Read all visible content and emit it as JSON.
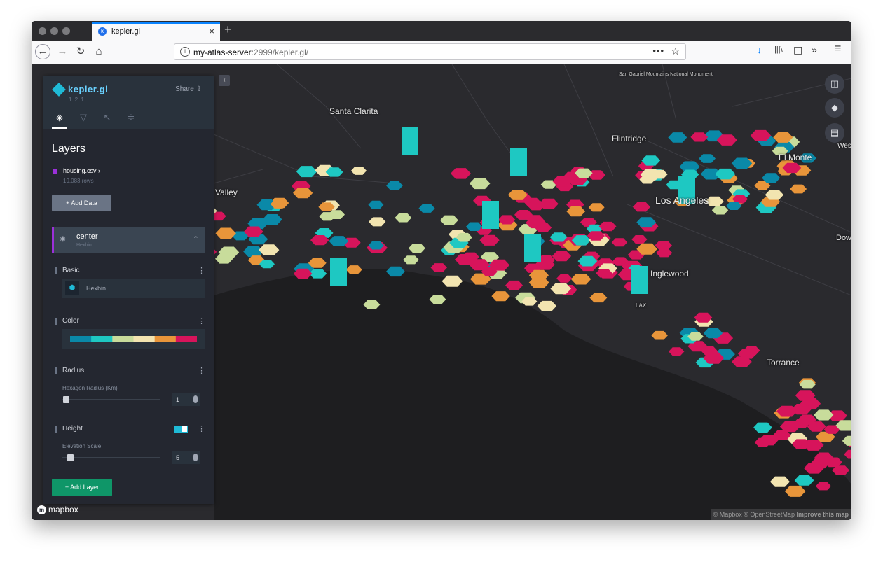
{
  "browser": {
    "tab_title": "kepler.gl",
    "tab_close": "×",
    "new_tab": "+",
    "url_host": "my-atlas-server",
    "url_path": ":2999/kepler.gl/",
    "back_icon": "←",
    "forward_icon": "→",
    "reload_icon": "↻",
    "home_icon": "⌂",
    "more_icon": "•••",
    "star_icon": "☆",
    "download_icon": "↓",
    "library_icon": "|||\\",
    "sidebar_icon": "◫",
    "overflow_icon": "»",
    "menu_icon": "≡"
  },
  "panel": {
    "brand": "kepler.gl",
    "version": "1.2.1",
    "share_label": "Share",
    "title": "Layers",
    "dataset": {
      "name": "housing.csv",
      "rows": "19,083 rows",
      "color": "#9b30d9"
    },
    "add_data_label": "Add Data",
    "layer": {
      "name": "center",
      "type": "Hexbin"
    },
    "sections": {
      "basic": "Basic",
      "basic_type": "Hexbin",
      "color": "Color",
      "radius": "Radius",
      "radius_sub": "Hexagon Radius (Km)",
      "radius_value": "1",
      "height": "Height",
      "elevation_sub": "Elevation Scale",
      "elevation_value": "5"
    },
    "add_layer_label": "Add Layer",
    "palette": [
      "#0a89a8",
      "#1ec8c2",
      "#c8dc9b",
      "#f2e4b0",
      "#e8953a",
      "#d7145b"
    ]
  },
  "map": {
    "labels": [
      "Santa Clarita",
      "Flintridge",
      "El Monte",
      "Los Angeles",
      "Inglewood",
      "Torrance",
      "Valley",
      "West C",
      "Dow"
    ],
    "small_label": "San Gabriel Mountains National Monument",
    "airport_label": "LAX",
    "attribution": "© Mapbox © OpenStreetMap",
    "attribution_link": "Improve this map",
    "logo": "mapbox"
  }
}
